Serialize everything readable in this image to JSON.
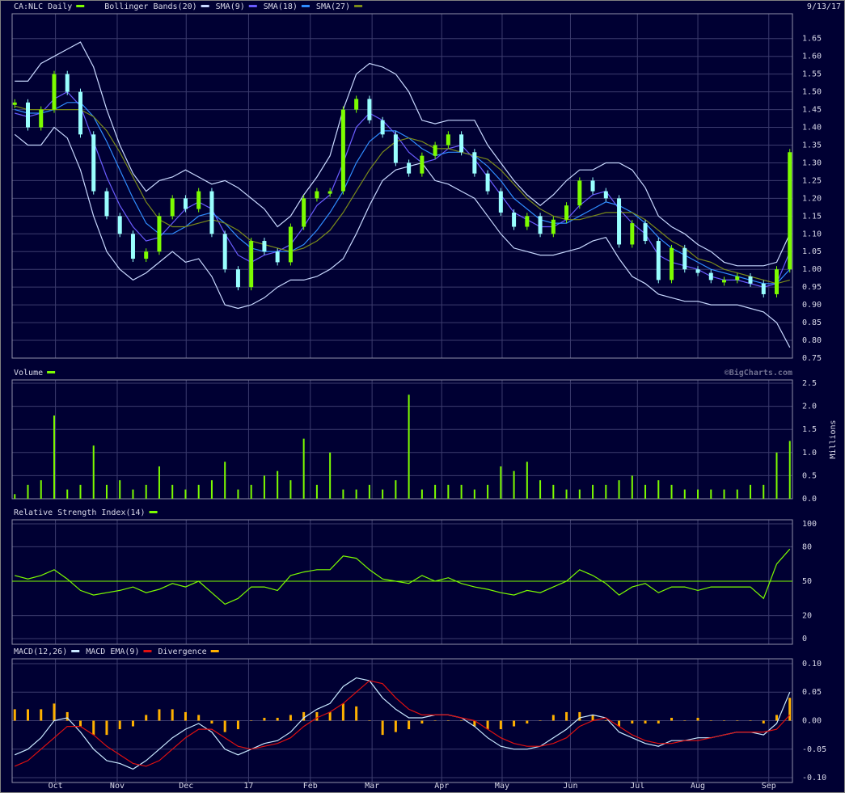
{
  "chart_data": [
    {
      "type": "candlestick",
      "title": "CA:NLC Daily",
      "date": "9/13/17",
      "series": [
        {
          "name": "CA:NLC Daily",
          "color": "#7cfc00",
          "down_color": "#99ffff",
          "values": [
            1.47,
            1.4,
            1.45,
            1.55,
            1.5,
            1.38,
            1.22,
            1.15,
            1.1,
            1.03,
            1.05,
            1.15,
            1.2,
            1.17,
            1.22,
            1.1,
            1.0,
            0.95,
            1.08,
            1.05,
            1.02,
            1.12,
            1.2,
            1.22,
            1.22,
            1.45,
            1.48,
            1.42,
            1.38,
            1.3,
            1.27,
            1.32,
            1.35,
            1.38,
            1.33,
            1.27,
            1.22,
            1.16,
            1.12,
            1.15,
            1.1,
            1.14,
            1.18,
            1.25,
            1.22,
            1.2,
            1.07,
            1.13,
            1.08,
            0.97,
            1.06,
            1.0,
            0.99,
            0.97,
            0.97,
            0.98,
            0.96,
            0.93,
            1.0,
            1.33
          ]
        },
        {
          "name": "Bollinger Bands(20)",
          "color": "#c8d8ff",
          "upper": [
            1.53,
            1.53,
            1.58,
            1.6,
            1.62,
            1.64,
            1.57,
            1.45,
            1.35,
            1.27,
            1.22,
            1.25,
            1.26,
            1.28,
            1.26,
            1.24,
            1.25,
            1.23,
            1.2,
            1.17,
            1.12,
            1.15,
            1.21,
            1.26,
            1.32,
            1.45,
            1.55,
            1.58,
            1.57,
            1.55,
            1.5,
            1.42,
            1.41,
            1.42,
            1.42,
            1.42,
            1.35,
            1.3,
            1.25,
            1.21,
            1.18,
            1.21,
            1.25,
            1.28,
            1.28,
            1.3,
            1.3,
            1.28,
            1.23,
            1.15,
            1.12,
            1.1,
            1.07,
            1.05,
            1.02,
            1.01,
            1.01,
            1.01,
            1.02,
            1.1
          ],
          "lower": [
            1.38,
            1.35,
            1.35,
            1.4,
            1.37,
            1.28,
            1.15,
            1.05,
            1.0,
            0.97,
            0.99,
            1.02,
            1.05,
            1.02,
            1.03,
            0.98,
            0.9,
            0.89,
            0.9,
            0.92,
            0.95,
            0.97,
            0.97,
            0.98,
            1.0,
            1.03,
            1.1,
            1.18,
            1.25,
            1.28,
            1.29,
            1.3,
            1.25,
            1.24,
            1.22,
            1.2,
            1.15,
            1.1,
            1.06,
            1.05,
            1.04,
            1.04,
            1.05,
            1.06,
            1.08,
            1.09,
            1.03,
            0.98,
            0.96,
            0.93,
            0.92,
            0.91,
            0.91,
            0.9,
            0.9,
            0.9,
            0.89,
            0.88,
            0.85,
            0.78
          ]
        },
        {
          "name": "SMA(9)",
          "color": "#6a5cff",
          "values": [
            1.44,
            1.43,
            1.44,
            1.48,
            1.5,
            1.46,
            1.36,
            1.26,
            1.18,
            1.12,
            1.08,
            1.09,
            1.13,
            1.17,
            1.19,
            1.17,
            1.1,
            1.04,
            1.02,
            1.04,
            1.05,
            1.07,
            1.12,
            1.18,
            1.21,
            1.3,
            1.4,
            1.44,
            1.42,
            1.38,
            1.33,
            1.3,
            1.31,
            1.34,
            1.35,
            1.31,
            1.26,
            1.21,
            1.16,
            1.14,
            1.12,
            1.12,
            1.14,
            1.18,
            1.21,
            1.22,
            1.17,
            1.13,
            1.1,
            1.04,
            1.02,
            1.01,
            1.0,
            0.98,
            0.97,
            0.97,
            0.96,
            0.95,
            0.96,
            1.05
          ]
        },
        {
          "name": "SMA(18)",
          "color": "#2f8cff",
          "values": [
            1.45,
            1.44,
            1.44,
            1.45,
            1.47,
            1.47,
            1.43,
            1.36,
            1.28,
            1.2,
            1.13,
            1.1,
            1.1,
            1.12,
            1.15,
            1.16,
            1.13,
            1.09,
            1.06,
            1.05,
            1.05,
            1.05,
            1.07,
            1.11,
            1.16,
            1.22,
            1.3,
            1.36,
            1.39,
            1.39,
            1.37,
            1.34,
            1.32,
            1.33,
            1.33,
            1.32,
            1.29,
            1.25,
            1.2,
            1.17,
            1.14,
            1.13,
            1.13,
            1.15,
            1.17,
            1.19,
            1.18,
            1.16,
            1.13,
            1.09,
            1.06,
            1.04,
            1.02,
            1.0,
            0.99,
            0.98,
            0.97,
            0.96,
            0.96,
            1.0
          ]
        },
        {
          "name": "SMA(27)",
          "color": "#7a8a1a",
          "values": [
            1.46,
            1.45,
            1.45,
            1.45,
            1.45,
            1.45,
            1.43,
            1.39,
            1.33,
            1.26,
            1.19,
            1.14,
            1.12,
            1.12,
            1.13,
            1.14,
            1.13,
            1.11,
            1.08,
            1.07,
            1.06,
            1.05,
            1.06,
            1.08,
            1.11,
            1.16,
            1.22,
            1.28,
            1.33,
            1.36,
            1.37,
            1.36,
            1.34,
            1.34,
            1.33,
            1.32,
            1.31,
            1.28,
            1.24,
            1.2,
            1.17,
            1.15,
            1.14,
            1.14,
            1.15,
            1.16,
            1.16,
            1.16,
            1.14,
            1.11,
            1.08,
            1.06,
            1.03,
            1.02,
            1.0,
            0.99,
            0.98,
            0.97,
            0.96,
            0.97
          ]
        }
      ],
      "ylim": [
        0.75,
        1.72
      ],
      "yticks": [
        0.75,
        {
          "value": 0.8,
          "label": "0.80"
        },
        0.85,
        {
          "value": 0.9,
          "label": "0.90"
        },
        0.95,
        {
          "value": 1.0,
          "label": "1.00"
        },
        1.05,
        {
          "value": 1.1,
          "label": "1.10"
        },
        1.15,
        {
          "value": 1.2,
          "label": "1.20"
        },
        1.25,
        {
          "value": 1.3,
          "label": "1.30"
        },
        1.35,
        {
          "value": 1.4,
          "label": "1.40"
        },
        1.45,
        {
          "value": 1.5,
          "label": "1.50"
        },
        1.55,
        {
          "value": 1.6,
          "label": "1.60"
        },
        1.65
      ],
      "grid": true
    },
    {
      "type": "bar",
      "credit": "©BigCharts.com",
      "y_label": "Millions",
      "series": [
        {
          "name": "Volume",
          "color": "#7cfc00",
          "values": [
            0.1,
            0.3,
            0.4,
            1.8,
            0.2,
            0.3,
            1.15,
            0.3,
            0.4,
            0.2,
            0.3,
            0.7,
            0.3,
            0.2,
            0.3,
            0.4,
            0.8,
            0.2,
            0.3,
            0.5,
            0.6,
            0.4,
            1.3,
            0.3,
            1.0,
            0.2,
            0.2,
            0.3,
            0.2,
            0.4,
            2.25,
            0.2,
            0.3,
            0.3,
            0.3,
            0.2,
            0.3,
            0.7,
            0.6,
            0.8,
            0.4,
            0.3,
            0.2,
            0.2,
            0.3,
            0.3,
            0.4,
            0.5,
            0.3,
            0.4,
            0.3,
            0.2,
            0.2,
            0.2,
            0.2,
            0.2,
            0.3,
            0.3,
            1.0,
            1.25
          ]
        }
      ],
      "ylim": [
        0,
        2.57
      ],
      "yticks": [
        {
          "value": 0,
          "label": "0.0"
        },
        0.5,
        {
          "value": 1,
          "label": "1.0"
        },
        1.5,
        {
          "value": 2,
          "label": "2.0"
        },
        2.5
      ],
      "grid": true
    },
    {
      "type": "line",
      "series": [
        {
          "name": "Relative Strength Index(14)",
          "color": "#7cfc00",
          "values": [
            55,
            52,
            55,
            60,
            52,
            42,
            38,
            40,
            42,
            45,
            40,
            43,
            48,
            45,
            50,
            40,
            30,
            35,
            45,
            45,
            42,
            55,
            58,
            60,
            60,
            72,
            70,
            60,
            52,
            50,
            48,
            55,
            50,
            53,
            48,
            45,
            43,
            40,
            38,
            42,
            40,
            45,
            50,
            60,
            55,
            48,
            38,
            45,
            48,
            40,
            45,
            45,
            42,
            45,
            45,
            45,
            45,
            35,
            65,
            78
          ]
        }
      ],
      "reference_line": 50,
      "reference_color": "#7cfc00",
      "ylim": [
        -4.9,
        103.5
      ],
      "yticks": [
        0,
        20,
        50,
        80,
        100
      ],
      "grid": true
    },
    {
      "type": "line",
      "series": [
        {
          "name": "MACD(12,26)",
          "color": "#c8e8ff",
          "values": [
            -0.06,
            -0.05,
            -0.03,
            0.0,
            0.005,
            -0.02,
            -0.05,
            -0.07,
            -0.075,
            -0.085,
            -0.07,
            -0.05,
            -0.03,
            -0.015,
            -0.005,
            -0.02,
            -0.05,
            -0.06,
            -0.05,
            -0.04,
            -0.035,
            -0.02,
            0.005,
            0.02,
            0.03,
            0.06,
            0.075,
            0.07,
            0.04,
            0.02,
            0.005,
            0.005,
            0.01,
            0.01,
            0.005,
            -0.01,
            -0.03,
            -0.045,
            -0.05,
            -0.05,
            -0.045,
            -0.03,
            -0.015,
            0.005,
            0.01,
            0.005,
            -0.02,
            -0.03,
            -0.04,
            -0.045,
            -0.035,
            -0.035,
            -0.03,
            -0.03,
            -0.025,
            -0.02,
            -0.02,
            -0.025,
            -0.005,
            0.05
          ]
        },
        {
          "name": "MACD EMA(9)",
          "color": "#e01010",
          "values": [
            -0.08,
            -0.07,
            -0.05,
            -0.03,
            -0.01,
            -0.01,
            -0.025,
            -0.045,
            -0.06,
            -0.075,
            -0.08,
            -0.07,
            -0.05,
            -0.03,
            -0.015,
            -0.015,
            -0.03,
            -0.045,
            -0.05,
            -0.045,
            -0.04,
            -0.03,
            -0.01,
            0.005,
            0.015,
            0.03,
            0.05,
            0.07,
            0.065,
            0.04,
            0.02,
            0.01,
            0.01,
            0.01,
            0.005,
            0.0,
            -0.015,
            -0.03,
            -0.04,
            -0.045,
            -0.045,
            -0.04,
            -0.03,
            -0.01,
            0.0,
            0.005,
            -0.01,
            -0.025,
            -0.035,
            -0.04,
            -0.04,
            -0.035,
            -0.035,
            -0.03,
            -0.025,
            -0.02,
            -0.02,
            -0.02,
            -0.015,
            0.01
          ]
        },
        {
          "name": "Divergence",
          "color": "#ffb000",
          "style": "bar",
          "values": [
            0.02,
            0.02,
            0.02,
            0.03,
            0.015,
            -0.01,
            -0.025,
            -0.025,
            -0.015,
            -0.01,
            0.01,
            0.02,
            0.02,
            0.015,
            0.01,
            -0.005,
            -0.02,
            -0.015,
            0.0,
            0.005,
            0.005,
            0.01,
            0.015,
            0.015,
            0.015,
            0.03,
            0.025,
            0.0,
            -0.025,
            -0.02,
            -0.015,
            -0.005,
            0.0,
            0.0,
            0.0,
            -0.01,
            -0.015,
            -0.015,
            -0.01,
            -0.005,
            0.0,
            0.01,
            0.015,
            0.015,
            0.01,
            0.0,
            -0.01,
            -0.005,
            -0.005,
            -0.005,
            0.005,
            0.0,
            0.005,
            0.0,
            0.0,
            0.0,
            0.0,
            -0.005,
            0.01,
            0.04
          ]
        }
      ],
      "ylim": [
        -0.1085,
        0.1085
      ],
      "yticks": [
        {
          "value": 0.1,
          "label": "0.10"
        },
        0.05,
        {
          "value": 0,
          "label": "0.00"
        },
        -0.05,
        {
          "value": -0.1,
          "label": "-0.10"
        }
      ],
      "xlim": [
        -0.2,
        59.2
      ],
      "xticks": [
        {
          "value": 3.1,
          "label": "Oct"
        },
        {
          "value": 7.8,
          "label": "Nov"
        },
        {
          "value": 13.05,
          "label": "Dec"
        },
        {
          "value": 17.8,
          "label": "17"
        },
        {
          "value": 22.5,
          "label": "Feb"
        },
        {
          "value": 27.2,
          "label": "Mar"
        },
        {
          "value": 32.5,
          "label": "Apr"
        },
        {
          "value": 37.1,
          "label": "May"
        },
        {
          "value": 42.3,
          "label": "Jun"
        },
        {
          "value": 47.4,
          "label": "Jul"
        },
        {
          "value": 52.0,
          "label": "Aug"
        },
        {
          "value": 57.4,
          "label": "Sep"
        }
      ],
      "grid": true
    }
  ]
}
